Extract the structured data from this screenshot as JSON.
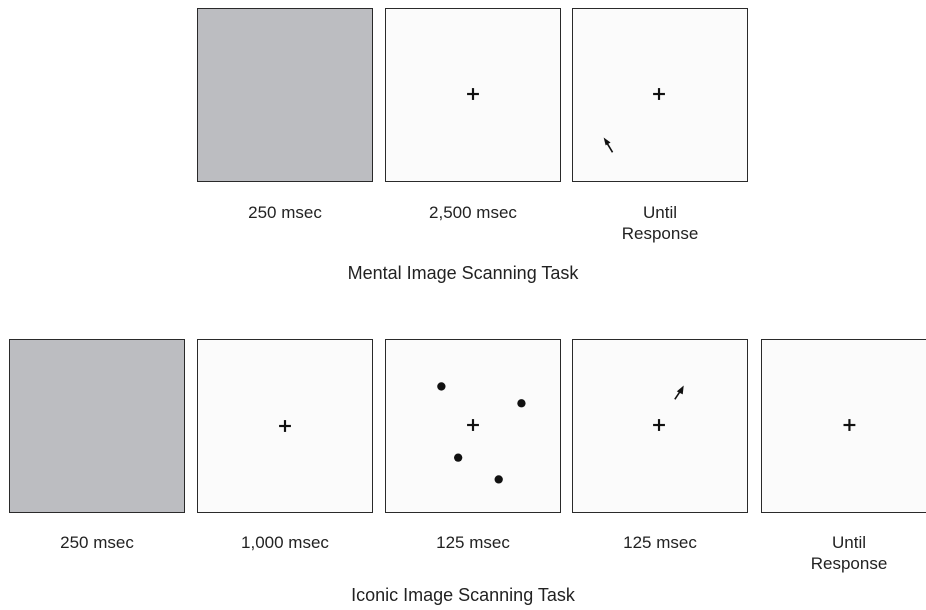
{
  "mental_task": {
    "title": "Mental Image Scanning Task",
    "frames": [
      {
        "duration": "250 msec",
        "content": "gray-mask"
      },
      {
        "duration": "2,500 msec",
        "content": "fixation-cross"
      },
      {
        "duration": "Until\nResponse",
        "content": "fixation-cross-with-arrow"
      }
    ]
  },
  "iconic_task": {
    "title": "Iconic Image Scanning Task",
    "frames": [
      {
        "duration": "250 msec",
        "content": "gray-mask"
      },
      {
        "duration": "1,000 msec",
        "content": "fixation-cross"
      },
      {
        "duration": "125 msec",
        "content": "fixation-cross-with-dots"
      },
      {
        "duration": "125 msec",
        "content": "fixation-cross-with-arrow"
      },
      {
        "duration": "Until\nResponse",
        "content": "fixation-cross"
      }
    ]
  },
  "colors": {
    "mask_gray": "#bcbdc1",
    "panel_border": "#2a2a2a",
    "mark": "#111111"
  },
  "icons": [
    "fixation-cross-icon",
    "arrow-icon",
    "dot-icon"
  ]
}
